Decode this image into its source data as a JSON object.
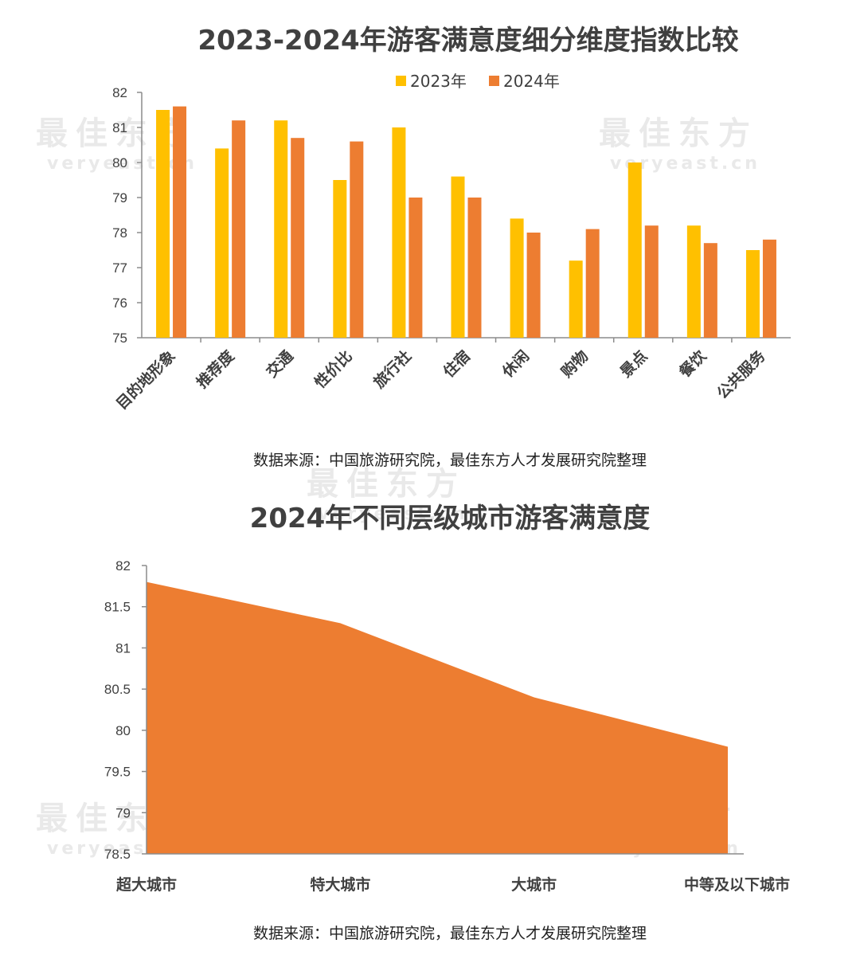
{
  "watermark": {
    "cn": "最佳东方",
    "en": "veryeast.cn"
  },
  "colors": {
    "y2023": "#FFC000",
    "y2024": "#ED7D31",
    "axis": "#8C8C8C",
    "area": "#ED7D31"
  },
  "chart_data": [
    {
      "type": "bar",
      "title": "2023-2024年游客满意度细分维度指数比较",
      "categories": [
        "目的地形象",
        "推荐度",
        "交通",
        "性价比",
        "旅行社",
        "住宿",
        "休闲",
        "购物",
        "景点",
        "餐饮",
        "公共服务"
      ],
      "series": [
        {
          "name": "2023年",
          "values": [
            81.5,
            80.4,
            81.2,
            79.5,
            81.0,
            79.6,
            78.4,
            77.2,
            80.0,
            78.2,
            77.5
          ]
        },
        {
          "name": "2024年",
          "values": [
            81.6,
            81.2,
            80.7,
            80.6,
            79.0,
            79.0,
            78.0,
            78.1,
            78.2,
            77.7,
            77.8
          ]
        }
      ],
      "ylim": [
        75,
        82
      ],
      "yticks": [
        "75",
        "76",
        "77",
        "78",
        "79",
        "80",
        "81",
        "82"
      ],
      "legend": "top-center",
      "grid": false,
      "source": "数据来源：中国旅游研究院，最佳东方人才发展研究院整理"
    },
    {
      "type": "area",
      "title": "2024年不同层级城市游客满意度",
      "categories": [
        "超大城市",
        "特大城市",
        "大城市",
        "中等及以下城市"
      ],
      "values": [
        81.8,
        81.3,
        80.4,
        79.8
      ],
      "ylim": [
        78.5,
        82
      ],
      "yticks": [
        "78.5",
        "79",
        "79.5",
        "80",
        "80.5",
        "81",
        "81.5",
        "82"
      ],
      "grid": false,
      "source": "数据来源：中国旅游研究院，最佳东方人才发展研究院整理"
    }
  ]
}
